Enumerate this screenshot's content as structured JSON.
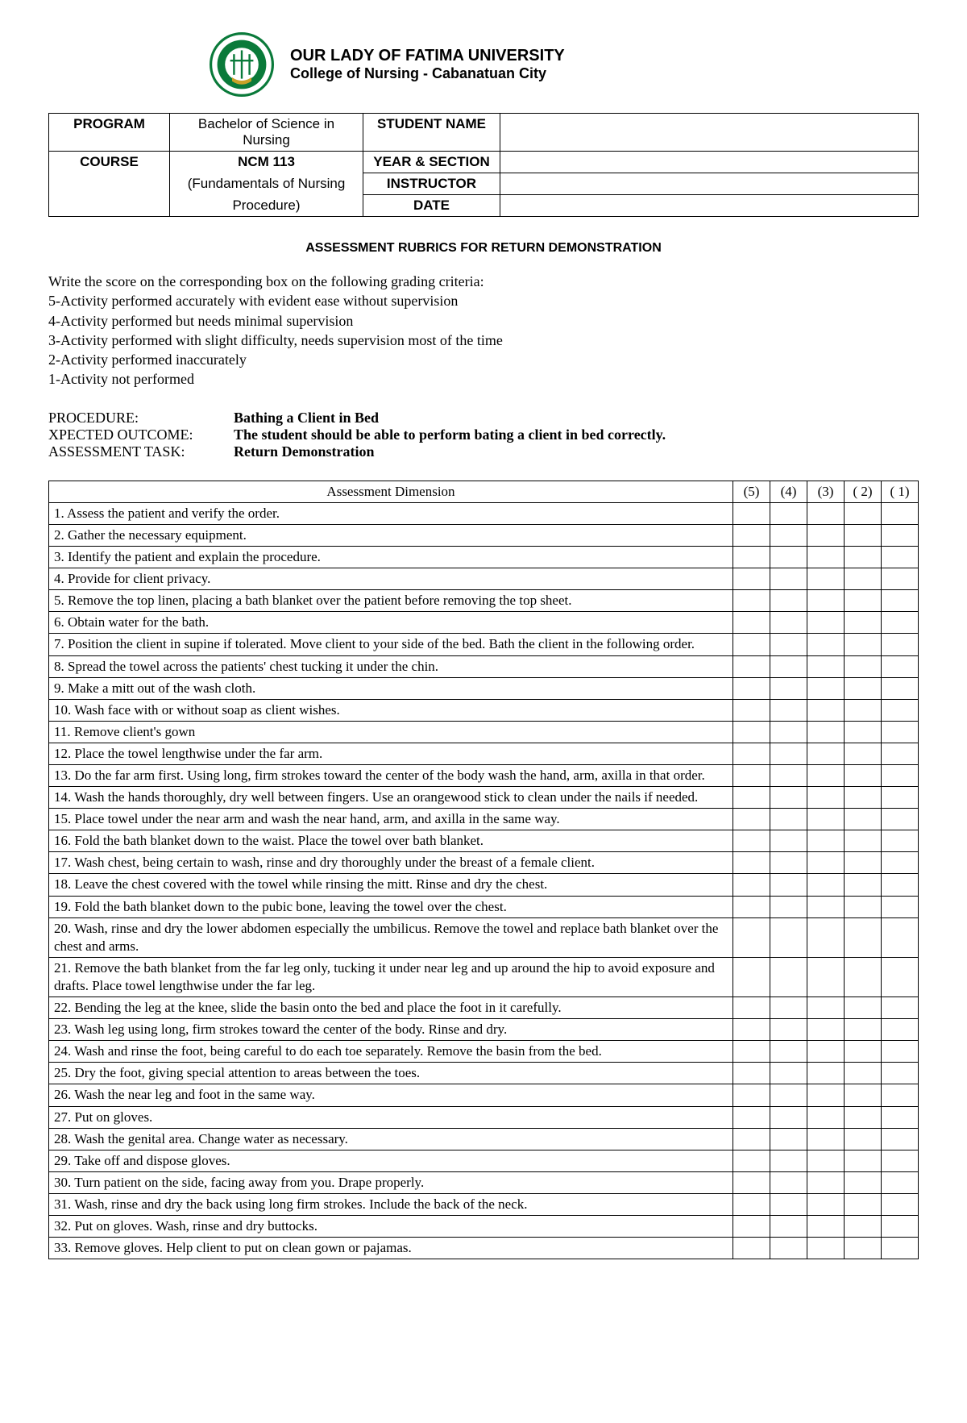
{
  "header": {
    "university": "OUR LADY OF FATIMA UNIVERSITY",
    "college": "College of Nursing - Cabanatuan City",
    "logo_colors": {
      "ring": "#0a7a3a",
      "inner": "#0a7a3a",
      "bg": "#ffffff"
    }
  },
  "info": {
    "program_label": "PROGRAM",
    "program_value": "Bachelor of Science in Nursing",
    "course_label": "COURSE",
    "course_value": "NCM 113",
    "course_sub1": "(Fundamentals of Nursing",
    "course_sub2": "Procedure)",
    "student_name_label": "STUDENT NAME",
    "year_section_label": "YEAR & SECTION",
    "instructor_label": "INSTRUCTOR",
    "date_label": "DATE"
  },
  "subtitle": "ASSESSMENT RUBRICS FOR RETURN DEMONSTRATION",
  "criteria": {
    "intro": "Write the score on the corresponding box on the following grading criteria:",
    "l5": "5-Activity performed accurately with evident ease without supervision",
    "l4": "4-Activity performed but needs minimal supervision",
    "l3": "3-Activity performed with slight difficulty, needs supervision most of the time",
    "l2": "2-Activity performed inaccurately",
    "l1": "1-Activity not performed"
  },
  "proc": {
    "procedure_label": "PROCEDURE:",
    "procedure_value": "Bathing a Client in Bed",
    "outcome_label": "XPECTED OUTCOME:",
    "outcome_value": "The student should be able to perform bating a client in bed correctly.",
    "task_label": "ASSESSMENT TASK:",
    "task_value": "Return Demonstration"
  },
  "rubric": {
    "header_dim": "Assessment Dimension",
    "score_cols": [
      "(5)",
      "(4)",
      "(3)",
      "( 2)",
      "( 1)"
    ],
    "items": [
      "1. Assess the patient and verify the order.",
      "2. Gather the necessary equipment.",
      "3. Identify the patient and explain the procedure.",
      "4. Provide for client privacy.",
      "5. Remove the top linen, placing a bath blanket over the patient before removing the top sheet.",
      "6. Obtain water for the bath.",
      "7. Position the client in supine if tolerated. Move client to your side of the bed. Bath the client in the following order.",
      "8. Spread the towel across the patients' chest tucking it under the chin.",
      "9. Make a mitt out of the wash cloth.",
      "10. Wash face with or without soap as client wishes.",
      "11. Remove client's gown",
      "12. Place the towel lengthwise under the far arm.",
      "13. Do the far arm first. Using long, firm strokes toward the center of the body wash the hand, arm, axilla in that order.",
      "14. Wash the hands thoroughly, dry well between fingers. Use an orangewood stick to clean under the nails if needed.",
      "15. Place towel under the near arm and wash the near hand, arm, and axilla in the same way.",
      "16. Fold the bath blanket down to the waist. Place the towel over bath blanket.",
      "17. Wash chest, being certain to wash, rinse and dry thoroughly under the breast of a female client.",
      "18. Leave the chest covered with the towel while rinsing the mitt. Rinse and dry the chest.",
      "19. Fold the bath blanket down to the pubic bone, leaving the towel over the chest.",
      "20. Wash, rinse and dry the lower abdomen especially the umbilicus. Remove the towel and replace bath blanket over the chest and arms.",
      "21. Remove the bath blanket from the far leg only, tucking it under near leg and up around the hip to avoid exposure and drafts. Place towel lengthwise under the far leg.",
      "22. Bending the leg at the knee, slide the basin onto the bed and place the foot in it carefully.",
      "23. Wash leg using long, firm strokes toward the center of the body. Rinse and dry.",
      "24. Wash and rinse the foot, being careful to do each toe separately. Remove the basin from the bed.",
      "25. Dry the foot, giving special attention to areas between the toes.",
      "26. Wash the near leg and foot in the same way.",
      "27. Put on gloves.",
      "28. Wash the genital area. Change water as necessary.",
      "29. Take off and dispose gloves.",
      "30. Turn patient on the side, facing away from you. Drape properly.",
      "31. Wash, rinse and dry the back using long firm strokes. Include the back of the neck.",
      "32. Put on gloves. Wash, rinse and dry buttocks.",
      "33. Remove gloves. Help client to put on clean gown or pajamas."
    ]
  }
}
